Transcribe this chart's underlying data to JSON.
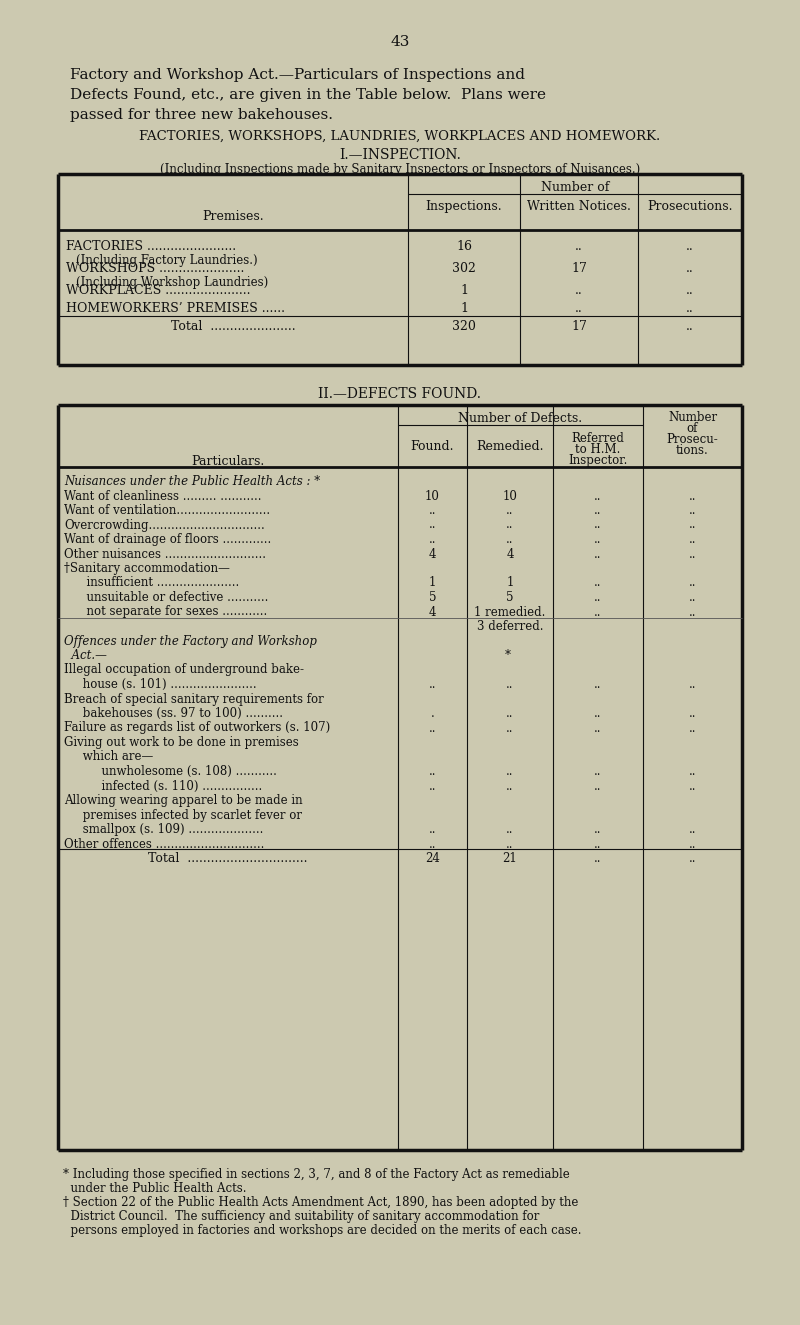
{
  "bg_color": "#ccc9b0",
  "text_color": "#111111",
  "page_number": "43",
  "intro_lines": [
    "Factory and Workshop Act.—Particulars of Inspections and",
    "Defects Found, etc., are given in the Table below.  Plans were",
    "passed for three new bakehouses."
  ],
  "section_heading": "FACTORIES, WORKSHOPS, LAUNDRIES, WORKPLACES AND HOMEWORK.",
  "sub1_heading": "I.—INSPECTION.",
  "sub1_note": "(Including Inspections made by Sanitary Inspectors or Inspectors of Nuisances.)",
  "t1_number_of": "Number of",
  "t1_premises_label": "Premises.",
  "t1_col_headers": [
    "Inspections.",
    "Written Notices.",
    "Prosecutions."
  ],
  "t1_rows": [
    [
      "FACTORIES .......................",
      "(Including Factory Laundries.)",
      "16",
      "..",
      ".."
    ],
    [
      "WORKSHOPS ......................",
      "(Including Workshop Laundries)",
      "302",
      "17",
      ".."
    ],
    [
      "WORKPLACES ......................",
      "",
      "1",
      "..",
      ".."
    ],
    [
      "HOMEWORKERS’ PREMISES ......",
      "",
      "1",
      "..",
      ".."
    ],
    [
      "Total  ......................",
      "",
      "320",
      "17",
      ".."
    ]
  ],
  "sub2_heading": "II.—DEFECTS FOUND.",
  "t2_num_defects": "Number of Defects.",
  "t2_num_prosecutions": [
    "Number",
    "of",
    "Prosecu-",
    "tions."
  ],
  "t2_particulars_label": "Particulars.",
  "t2_col_headers": [
    "Found.",
    "Remedied.",
    "Referred\nto H.M.\nInspector."
  ],
  "t2_rows": [
    [
      "italic",
      "Nuisances under the Public Health Acts : *",
      "",
      "",
      "",
      ""
    ],
    [
      "normal",
      "Want of cleanliness ......... ...........",
      "10",
      "10",
      "..",
      ".."
    ],
    [
      "normal",
      "Want of ventilation.........................",
      "..",
      "..",
      "..",
      ".."
    ],
    [
      "normal",
      "Overcrowding...............................",
      "..",
      "..",
      "..",
      ".."
    ],
    [
      "normal",
      "Want of drainage of floors .............",
      "..",
      "..",
      "..",
      ".."
    ],
    [
      "normal",
      "Other nuisances ...........................",
      "4",
      "4",
      "..",
      ".."
    ],
    [
      "normal",
      "†Sanitary accommodation—",
      "",
      "",
      "",
      ""
    ],
    [
      "normal",
      "      insufficient ......................",
      "1",
      "1",
      "..",
      ".."
    ],
    [
      "normal",
      "      unsuitable or defective ...........",
      "5",
      "5",
      "..",
      ".."
    ],
    [
      "normal",
      "      not separate for sexes ............",
      "4",
      "1 remedied.",
      "..",
      ".."
    ],
    [
      "normal",
      "",
      "",
      "3 deferred.",
      "",
      ""
    ],
    [
      "italic",
      "Offences under the Factory and Workshop",
      "",
      "",
      "",
      ""
    ],
    [
      "italic",
      "  Act.—",
      "",
      "* ",
      "",
      ""
    ],
    [
      "normal",
      "Illegal occupation of underground bake-",
      "",
      "",
      "",
      ""
    ],
    [
      "normal",
      "     house (s. 101) .......................",
      "..",
      "..",
      "..",
      ".."
    ],
    [
      "normal",
      "Breach of special sanitary requirements for",
      "",
      "",
      "",
      ""
    ],
    [
      "normal",
      "     bakehouses (ss. 97 to 100) ..........",
      ".",
      "..",
      "..",
      ".."
    ],
    [
      "normal",
      "Failure as regards list of outworkers (s. 107)",
      "..",
      "..",
      "..",
      ".."
    ],
    [
      "normal",
      "Giving out work to be done in premises",
      "",
      "",
      "",
      ""
    ],
    [
      "normal",
      "     which are—",
      "",
      "",
      "",
      ""
    ],
    [
      "normal",
      "          unwholesome (s. 108) ...........",
      "..",
      "..",
      "..",
      ".."
    ],
    [
      "normal",
      "          infected (s. 110) ................",
      "..",
      "..",
      "..",
      ".."
    ],
    [
      "normal",
      "Allowing wearing apparel to be made in",
      "",
      "",
      "",
      ""
    ],
    [
      "normal",
      "     premises infected by scarlet fever or",
      "",
      "",
      "",
      ""
    ],
    [
      "normal",
      "     smallpox (s. 109) ....................",
      "..",
      "..",
      "..",
      ".."
    ],
    [
      "normal",
      "Other offences .............................",
      "..",
      "..",
      "..",
      ".."
    ],
    [
      "total",
      "Total  ...............................",
      "24",
      "21",
      "..",
      ".."
    ]
  ],
  "footnotes": [
    [
      "*",
      " Including those specified in sections 2, 3, 7, and 8 of the Factory Act as remediable"
    ],
    [
      "",
      "  under the Public Health Acts."
    ],
    [
      "†",
      " Section 22 of the Public Health Acts Amendment Act, 1890, has been adopted by the"
    ],
    [
      "",
      "  District Council.  The sufficiency and suitability of sanitary accommodation for"
    ],
    [
      "",
      "  persons employed in factories and workshops are decided on the merits of each case."
    ]
  ]
}
